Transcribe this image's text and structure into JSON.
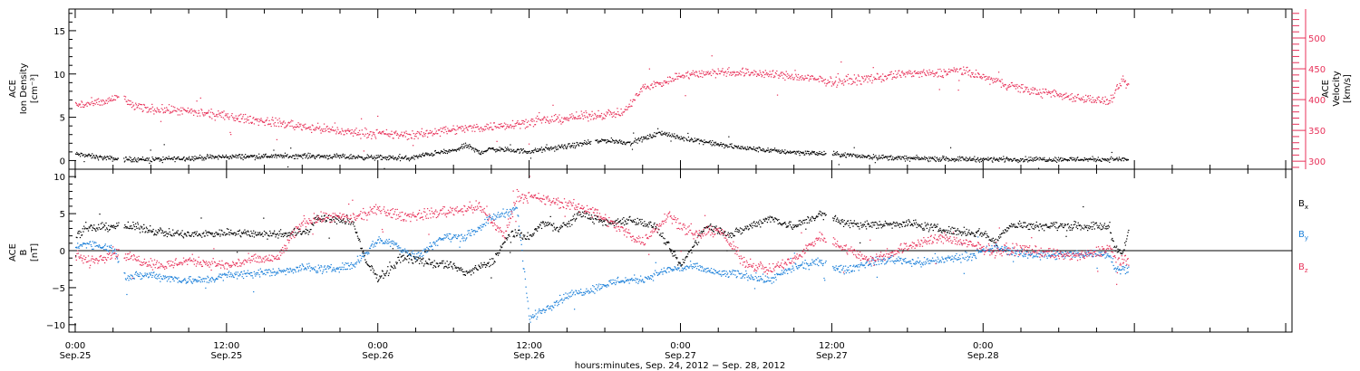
{
  "chart_data": [
    {
      "type": "scatter",
      "panel": "top",
      "left_axis": {
        "label_lines": [
          "ACE",
          "Ion Density",
          "[cm⁻³]"
        ],
        "ylim": [
          -1,
          17.5
        ],
        "ticks": [
          0,
          5,
          10,
          15
        ],
        "tick_labels": [
          "0",
          "5",
          "10",
          "15"
        ]
      },
      "right_axis": {
        "label_lines": [
          "ACE",
          "Velocity",
          "[km/s]"
        ],
        "ylim": [
          287,
          547
        ],
        "ticks": [
          300,
          350,
          400,
          450,
          500
        ],
        "tick_labels": [
          "300",
          "350",
          "400",
          "450",
          "500"
        ],
        "color": "#e8325a"
      },
      "series": [
        {
          "axis": "left",
          "color": "#000000",
          "keyframes": [
            [
              0,
              0.8
            ],
            [
              2,
              0.4
            ],
            [
              3.5,
              0.2
            ],
            [
              5,
              0.2
            ],
            [
              6.5,
              0.2
            ],
            [
              12,
              0.5
            ],
            [
              18,
              0.6
            ],
            [
              24,
              0.4
            ],
            [
              26.5,
              0.3
            ],
            [
              28,
              0.8
            ],
            [
              30,
              1.2
            ],
            [
              31,
              1.8
            ],
            [
              32,
              1.0
            ],
            [
              33,
              1.4
            ],
            [
              36,
              1.1
            ],
            [
              39,
              1.7
            ],
            [
              42,
              2.4
            ],
            [
              44,
              2.1
            ],
            [
              45.5,
              2.8
            ],
            [
              46.5,
              3.3
            ],
            [
              48,
              2.6
            ],
            [
              49,
              2.5
            ],
            [
              51,
              1.9
            ],
            [
              53,
              1.5
            ],
            [
              56,
              1.1
            ],
            [
              60,
              0.8
            ],
            [
              63,
              0.5
            ],
            [
              66,
              0.3
            ],
            [
              72,
              0.2
            ],
            [
              78,
              0.2
            ],
            [
              83,
              0.2
            ],
            [
              83.5,
              0.2
            ]
          ],
          "gaps": [
            [
              3.4,
              3.8
            ],
            [
              40.9,
              41.2
            ],
            [
              48.3,
              48.4
            ],
            [
              59.5,
              60.0
            ]
          ],
          "noise": 0.35
        },
        {
          "axis": "right",
          "color": "#e8325a",
          "keyframes": [
            [
              0,
              392
            ],
            [
              2,
              395
            ],
            [
              3.4,
              405
            ],
            [
              3.8,
              405
            ],
            [
              4.2,
              395
            ],
            [
              5,
              387
            ],
            [
              8,
              383
            ],
            [
              11,
              376
            ],
            [
              16,
              363
            ],
            [
              21,
              349
            ],
            [
              25,
              344
            ],
            [
              27,
              343
            ],
            [
              29,
              351
            ],
            [
              33,
              357
            ],
            [
              36,
              364
            ],
            [
              40,
              373
            ],
            [
              42,
              377
            ],
            [
              43.5,
              380
            ],
            [
              45,
              420
            ],
            [
              46.5,
              428
            ],
            [
              48,
              440
            ],
            [
              51,
              446
            ],
            [
              54,
              444
            ],
            [
              57,
              438
            ],
            [
              60,
              430
            ],
            [
              62,
              433
            ],
            [
              64,
              437
            ],
            [
              66,
              444
            ],
            [
              68,
              442
            ],
            [
              70,
              449
            ],
            [
              72,
              437
            ],
            [
              74,
              424
            ],
            [
              76,
              414
            ],
            [
              78,
              408
            ],
            [
              80,
              403
            ],
            [
              82,
              397
            ],
            [
              82.5,
              413
            ],
            [
              83,
              432
            ],
            [
              83.5,
              423
            ]
          ],
          "gaps": [
            [
              3.4,
              3.8
            ]
          ],
          "noise": 9
        }
      ]
    },
    {
      "type": "scatter",
      "panel": "bottom",
      "left_axis": {
        "label_lines": [
          "ACE",
          "B",
          "[nT]"
        ],
        "ylim": [
          -11,
          11
        ],
        "ticks": [
          -10,
          -5,
          0,
          5,
          10
        ],
        "tick_labels": [
          "−10",
          "−5",
          "0",
          "5",
          "10"
        ],
        "zero_line": true
      },
      "series": [
        {
          "name": "Bₓ",
          "color": "#000000",
          "keyframes": [
            [
              0,
              2.1
            ],
            [
              1,
              3.0
            ],
            [
              3,
              3.4
            ],
            [
              5,
              3.2
            ],
            [
              7,
              2.5
            ],
            [
              9,
              2.2
            ],
            [
              12,
              2.5
            ],
            [
              16,
              2.3
            ],
            [
              18.5,
              2.7
            ],
            [
              19,
              4.4
            ],
            [
              21,
              4.2
            ],
            [
              22,
              3.9
            ],
            [
              23,
              -1.5
            ],
            [
              24,
              -3.6
            ],
            [
              25,
              -2.3
            ],
            [
              26,
              -0.7
            ],
            [
              28,
              -1.6
            ],
            [
              30,
              -2.0
            ],
            [
              31,
              -3.0
            ],
            [
              33,
              -1.5
            ],
            [
              34.5,
              2.5
            ],
            [
              36,
              1.8
            ],
            [
              37,
              3.8
            ],
            [
              38,
              3.2
            ],
            [
              39,
              3.5
            ],
            [
              40,
              5.2
            ],
            [
              42,
              3.7
            ],
            [
              44,
              4.3
            ],
            [
              46,
              3.3
            ],
            [
              48,
              -2.0
            ],
            [
              50,
              3.5
            ],
            [
              52,
              2.2
            ],
            [
              55,
              4.5
            ],
            [
              57,
              3.3
            ],
            [
              59,
              5.0
            ],
            [
              61,
              3.8
            ],
            [
              63,
              3.5
            ],
            [
              66,
              3.8
            ],
            [
              69,
              2.8
            ],
            [
              72,
              2.4
            ],
            [
              73,
              1.2
            ],
            [
              74,
              3.5
            ],
            [
              78,
              3.4
            ],
            [
              80,
              3.4
            ],
            [
              82,
              3.3
            ],
            [
              82.3,
              1.0
            ],
            [
              83,
              -0.5
            ],
            [
              83.5,
              2.5
            ]
          ],
          "gaps": [
            [
              3.4,
              3.8
            ],
            [
              59.5,
              60.0
            ]
          ],
          "noise": 0.7
        },
        {
          "name": "B_y",
          "color": "#1a7fd9",
          "keyframes": [
            [
              0,
              0.5
            ],
            [
              1,
              1.1
            ],
            [
              3,
              0.3
            ],
            [
              4,
              -3.5
            ],
            [
              6,
              -3.2
            ],
            [
              8,
              -3.8
            ],
            [
              10,
              -4.0
            ],
            [
              12,
              -3.3
            ],
            [
              14,
              -3.0
            ],
            [
              16,
              -2.8
            ],
            [
              18,
              -2.2
            ],
            [
              20,
              -2.5
            ],
            [
              22,
              -1.9
            ],
            [
              24,
              1.5
            ],
            [
              25,
              1.2
            ],
            [
              27,
              -0.8
            ],
            [
              29,
              1.8
            ],
            [
              31,
              2.0
            ],
            [
              33,
              4.5
            ],
            [
              35,
              5.8
            ],
            [
              36,
              -9.2
            ],
            [
              37,
              -8.0
            ],
            [
              39,
              -6.0
            ],
            [
              41,
              -5.1
            ],
            [
              43,
              -4.0
            ],
            [
              45,
              -3.8
            ],
            [
              47,
              -2.5
            ],
            [
              49,
              -2.1
            ],
            [
              51,
              -3.0
            ],
            [
              53,
              -3.2
            ],
            [
              55,
              -4.0
            ],
            [
              57,
              -2.2
            ],
            [
              59,
              -1.5
            ],
            [
              61,
              -2.6
            ],
            [
              63,
              -1.5
            ],
            [
              65,
              -1.1
            ],
            [
              67,
              -1.6
            ],
            [
              69,
              -1.1
            ],
            [
              71,
              -0.6
            ],
            [
              73,
              0.5
            ],
            [
              75,
              -0.4
            ],
            [
              78,
              -0.5
            ],
            [
              80,
              -0.3
            ],
            [
              82,
              -0.4
            ],
            [
              82.5,
              -2.5
            ],
            [
              83.5,
              -2.3
            ]
          ],
          "gaps": [
            [
              3.4,
              3.8
            ],
            [
              59.5,
              60.0
            ]
          ],
          "noise": 0.7
        },
        {
          "name": "B_z",
          "color": "#e8325a",
          "keyframes": [
            [
              0,
              -0.3
            ],
            [
              1,
              -1.5
            ],
            [
              3,
              -0.2
            ],
            [
              5,
              -1.2
            ],
            [
              7,
              -2.0
            ],
            [
              9,
              -1.2
            ],
            [
              12,
              -2.0
            ],
            [
              14,
              -1.2
            ],
            [
              16,
              -1.0
            ],
            [
              18,
              4.0
            ],
            [
              20,
              4.6
            ],
            [
              22,
              4.4
            ],
            [
              24,
              5.6
            ],
            [
              26,
              4.7
            ],
            [
              28,
              5.0
            ],
            [
              30,
              5.5
            ],
            [
              32,
              6.0
            ],
            [
              34,
              2.0
            ],
            [
              35,
              7.5
            ],
            [
              37,
              7.0
            ],
            [
              39,
              6.3
            ],
            [
              41,
              5.5
            ],
            [
              43,
              3.2
            ],
            [
              45,
              1.2
            ],
            [
              47,
              5.0
            ],
            [
              49,
              2.0
            ],
            [
              51,
              3.0
            ],
            [
              53,
              -1.5
            ],
            [
              55,
              -2.5
            ],
            [
              57,
              -1.2
            ],
            [
              59,
              2.0
            ],
            [
              61,
              0.4
            ],
            [
              63,
              -1.2
            ],
            [
              65,
              0.0
            ],
            [
              67,
              1.2
            ],
            [
              69,
              1.8
            ],
            [
              71,
              0.8
            ],
            [
              73,
              0.0
            ],
            [
              75,
              0.3
            ],
            [
              78,
              -0.5
            ],
            [
              80,
              -0.7
            ],
            [
              82,
              0.5
            ],
            [
              82.5,
              -1.2
            ],
            [
              83.5,
              -1.5
            ]
          ],
          "gaps": [
            [
              3.4,
              3.8
            ],
            [
              59.5,
              60.0
            ]
          ],
          "noise": 0.9
        }
      ],
      "legend": [
        "Bₓ",
        "B_y",
        "B_z"
      ],
      "legend_placement": "right"
    }
  ],
  "x_axis": {
    "unit": "hours",
    "xlim": [
      -0.5,
      96.5
    ],
    "ticks": [
      0,
      12,
      24,
      36,
      48,
      60,
      72,
      84
    ],
    "tick_labels_top": [
      "0:00",
      "12:00",
      "0:00",
      "12:00",
      "0:00",
      "12:00",
      "0:00",
      ""
    ],
    "tick_labels_bottom": [
      "Sep.25",
      "Sep.25",
      "Sep.26",
      "Sep.26",
      "Sep.27",
      "Sep.27",
      "Sep.28",
      ""
    ],
    "xlabel": "hours:minutes, Sep. 24, 2012 − Sep. 28, 2012"
  },
  "legend_labels": {
    "bx_main": "B",
    "bx_sub": "x",
    "by_main": "B",
    "by_sub": "y",
    "bz_main": "B",
    "bz_sub": "z"
  },
  "colors": {
    "density": "#000000",
    "velocity": "#e8325a",
    "bx": "#000000",
    "by": "#1a7fd9",
    "bz": "#e8325a"
  }
}
